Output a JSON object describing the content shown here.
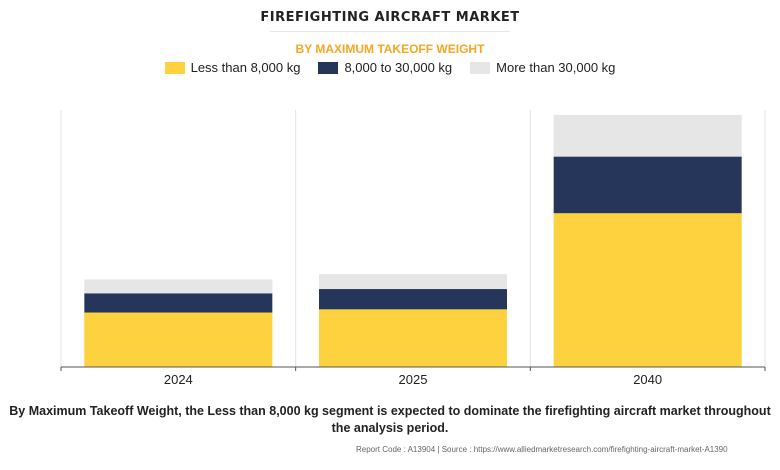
{
  "chart": {
    "title": "FIREFIGHTING AIRCRAFT MARKET",
    "subtitle": "BY MAXIMUM TAKEOFF WEIGHT"
  },
  "colors": {
    "less_than_8000": "#fdd23e",
    "8000_to_30000": "#26355a",
    "more_than_30000": "#e7e6e6",
    "subtitle": "#f5a623"
  },
  "legend": [
    {
      "label": "Less than 8,000 kg",
      "color": "#fdd23e"
    },
    {
      "label": "8,000 to 30,000 kg",
      "color": "#26355a"
    },
    {
      "label": "More than 30,000 kg",
      "color": "#e7e6e6"
    }
  ],
  "chart_data": {
    "type": "bar",
    "stacked": true,
    "categories": [
      "2024",
      "2025",
      "2040"
    ],
    "series": [
      {
        "name": "Less than 8,000 kg",
        "values": [
          51,
          54,
          144
        ]
      },
      {
        "name": "8,000 to 30,000 kg",
        "values": [
          18,
          19,
          53
        ]
      },
      {
        "name": "More than 30,000 kg",
        "values": [
          13,
          14,
          39
        ]
      }
    ],
    "ylim": [
      0,
      250
    ],
    "grid": false,
    "legend_position": "top-center"
  },
  "description": "By Maximum Takeoff Weight, the Less than 8,000 kg segment is expected to dominate the firefighting aircraft market throughout the analysis period.",
  "footer": "Report Code : A13904  |  Source : https://www.alliedmarketresearch.com/firefighting-aircraft-market-A1390"
}
